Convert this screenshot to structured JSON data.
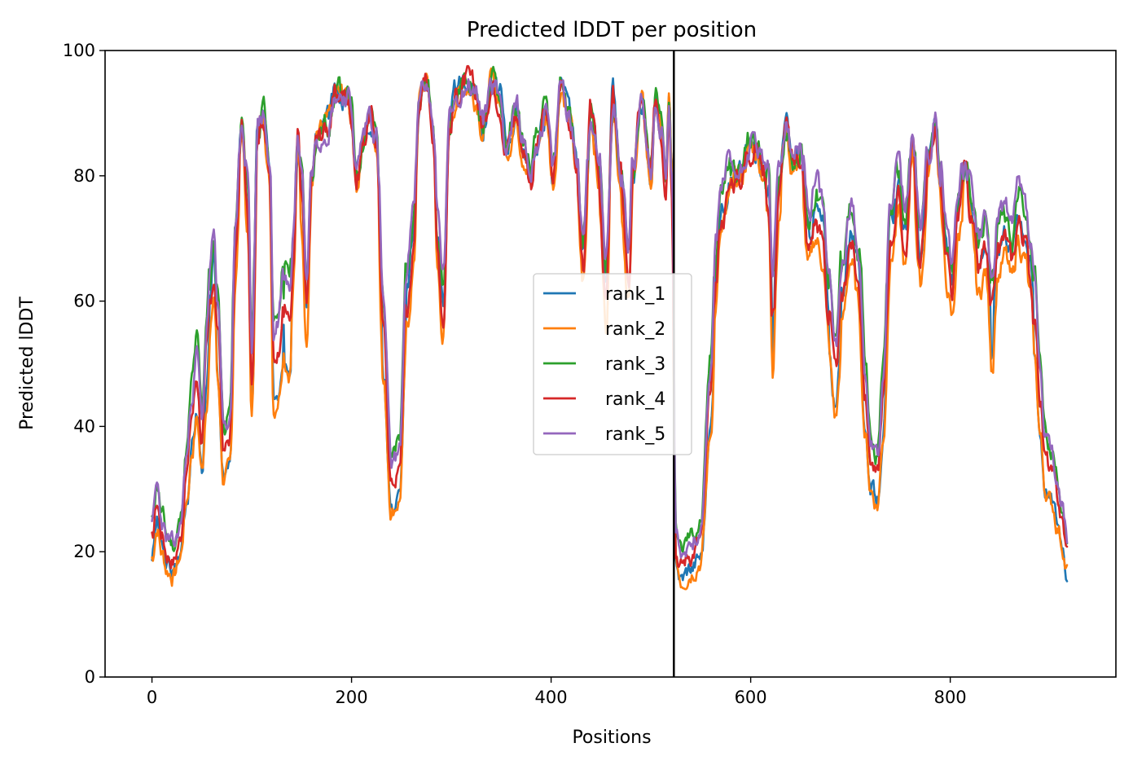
{
  "chart_data": {
    "type": "line",
    "title": "Predicted lDDT per position",
    "xlabel": "Positions",
    "ylabel": "Predicted lDDT",
    "xlim": [
      -47,
      966
    ],
    "ylim": [
      0,
      100
    ],
    "xticks": [
      0,
      200,
      400,
      600,
      800
    ],
    "yticks": [
      0,
      20,
      40,
      60,
      80,
      100
    ],
    "grid": false,
    "legend_position": "center",
    "vline": {
      "x": 523,
      "color": "#000000"
    },
    "anchors": [
      [
        0,
        22
      ],
      [
        5,
        28
      ],
      [
        10,
        23
      ],
      [
        15,
        20
      ],
      [
        22,
        19
      ],
      [
        28,
        22
      ],
      [
        35,
        33
      ],
      [
        40,
        42
      ],
      [
        45,
        48
      ],
      [
        50,
        38
      ],
      [
        55,
        52
      ],
      [
        58,
        60
      ],
      [
        62,
        66
      ],
      [
        66,
        55
      ],
      [
        72,
        36
      ],
      [
        78,
        38
      ],
      [
        84,
        70
      ],
      [
        90,
        88
      ],
      [
        96,
        75
      ],
      [
        100,
        48
      ],
      [
        106,
        88
      ],
      [
        112,
        90
      ],
      [
        118,
        80
      ],
      [
        122,
        50
      ],
      [
        126,
        52
      ],
      [
        132,
        60
      ],
      [
        138,
        57
      ],
      [
        142,
        68
      ],
      [
        146,
        86
      ],
      [
        150,
        78
      ],
      [
        155,
        60
      ],
      [
        160,
        80
      ],
      [
        165,
        86
      ],
      [
        175,
        88
      ],
      [
        185,
        93
      ],
      [
        195,
        93
      ],
      [
        200,
        90
      ],
      [
        205,
        80
      ],
      [
        212,
        86
      ],
      [
        218,
        90
      ],
      [
        225,
        86
      ],
      [
        232,
        55
      ],
      [
        240,
        31
      ],
      [
        248,
        33
      ],
      [
        255,
        60
      ],
      [
        262,
        70
      ],
      [
        268,
        93
      ],
      [
        275,
        95
      ],
      [
        282,
        88
      ],
      [
        286,
        70
      ],
      [
        292,
        60
      ],
      [
        298,
        88
      ],
      [
        305,
        93
      ],
      [
        315,
        95
      ],
      [
        325,
        93
      ],
      [
        332,
        88
      ],
      [
        340,
        95
      ],
      [
        348,
        93
      ],
      [
        355,
        85
      ],
      [
        365,
        90
      ],
      [
        372,
        85
      ],
      [
        380,
        80
      ],
      [
        385,
        85
      ],
      [
        395,
        90
      ],
      [
        402,
        80
      ],
      [
        410,
        95
      ],
      [
        418,
        90
      ],
      [
        425,
        82
      ],
      [
        432,
        68
      ],
      [
        440,
        90
      ],
      [
        448,
        80
      ],
      [
        455,
        62
      ],
      [
        462,
        92
      ],
      [
        470,
        80
      ],
      [
        478,
        66
      ],
      [
        482,
        80
      ],
      [
        490,
        92
      ],
      [
        500,
        80
      ],
      [
        505,
        92
      ],
      [
        510,
        88
      ],
      [
        515,
        80
      ],
      [
        518,
        92
      ],
      [
        521,
        80
      ],
      [
        525,
        21
      ],
      [
        530,
        18
      ],
      [
        540,
        20
      ],
      [
        550,
        22
      ],
      [
        560,
        45
      ],
      [
        565,
        65
      ],
      [
        570,
        75
      ],
      [
        580,
        80
      ],
      [
        590,
        80
      ],
      [
        598,
        85
      ],
      [
        605,
        85
      ],
      [
        612,
        82
      ],
      [
        618,
        78
      ],
      [
        622,
        58
      ],
      [
        628,
        78
      ],
      [
        635,
        88
      ],
      [
        642,
        82
      ],
      [
        650,
        84
      ],
      [
        658,
        70
      ],
      [
        665,
        75
      ],
      [
        672,
        72
      ],
      [
        678,
        60
      ],
      [
        685,
        48
      ],
      [
        692,
        62
      ],
      [
        700,
        72
      ],
      [
        708,
        65
      ],
      [
        715,
        45
      ],
      [
        720,
        35
      ],
      [
        727,
        32
      ],
      [
        733,
        45
      ],
      [
        740,
        72
      ],
      [
        748,
        78
      ],
      [
        755,
        70
      ],
      [
        762,
        85
      ],
      [
        770,
        68
      ],
      [
        778,
        82
      ],
      [
        785,
        88
      ],
      [
        790,
        80
      ],
      [
        796,
        68
      ],
      [
        802,
        62
      ],
      [
        808,
        75
      ],
      [
        815,
        82
      ],
      [
        822,
        75
      ],
      [
        828,
        66
      ],
      [
        835,
        70
      ],
      [
        842,
        58
      ],
      [
        848,
        70
      ],
      [
        855,
        72
      ],
      [
        862,
        68
      ],
      [
        868,
        75
      ],
      [
        875,
        72
      ],
      [
        880,
        66
      ],
      [
        885,
        58
      ],
      [
        890,
        45
      ],
      [
        895,
        35
      ],
      [
        902,
        32
      ],
      [
        908,
        28
      ],
      [
        912,
        25
      ],
      [
        917,
        20
      ]
    ],
    "series": [
      {
        "name": "rank_1",
        "color": "#1f77b4",
        "offset": 0.0,
        "lowfloor": 0.88,
        "seed": 3
      },
      {
        "name": "rank_2",
        "color": "#ff7f0e",
        "offset": -2.5,
        "lowfloor": 0.86,
        "seed": 7
      },
      {
        "name": "rank_3",
        "color": "#2ca02c",
        "offset": 1.2,
        "lowfloor": 1.12,
        "seed": 11
      },
      {
        "name": "rank_4",
        "color": "#d62728",
        "offset": -1.0,
        "lowfloor": 1.0,
        "seed": 17
      },
      {
        "name": "rank_5",
        "color": "#9467bd",
        "offset": 1.8,
        "lowfloor": 1.08,
        "seed": 23
      }
    ]
  }
}
